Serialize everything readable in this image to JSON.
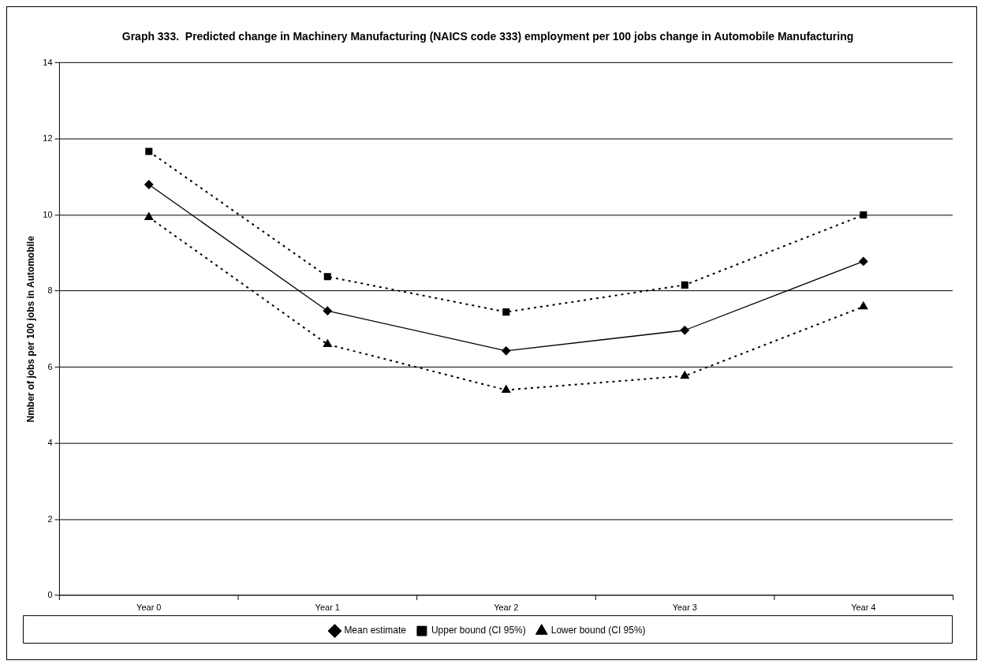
{
  "chart_data": {
    "type": "line",
    "title": "Graph 333.  Predicted change in Machinery Manufacturing (NAICS code 333) employment per 100 jobs change in Automobile Manufacturing",
    "ylabel": "Nmber of jobs per 100 jobs in Automobile",
    "categories": [
      "Year 0",
      "Year 1",
      "Year 2",
      "Year 3",
      "Year 4"
    ],
    "series": [
      {
        "name": "Mean estimate",
        "color": "#000000",
        "values": [
          10.8,
          7.48,
          6.43,
          6.97,
          8.78
        ],
        "marker": "diamond",
        "line_style": "solid"
      },
      {
        "name": "Upper bound (CI 95%)",
        "color": "#000000",
        "values": [
          11.67,
          8.38,
          7.45,
          8.16,
          10.0
        ],
        "marker": "square",
        "line_style": "dotted"
      },
      {
        "name": "Lower bound (CI 95%)",
        "color": "#000000",
        "values": [
          9.94,
          6.6,
          5.4,
          5.77,
          7.59
        ],
        "marker": "triangle",
        "line_style": "dotted"
      }
    ],
    "ylim": [
      0,
      14
    ],
    "yticks": [
      0,
      2,
      4,
      6,
      8,
      10,
      12,
      14
    ],
    "grid": "y",
    "legend": "bottom"
  }
}
